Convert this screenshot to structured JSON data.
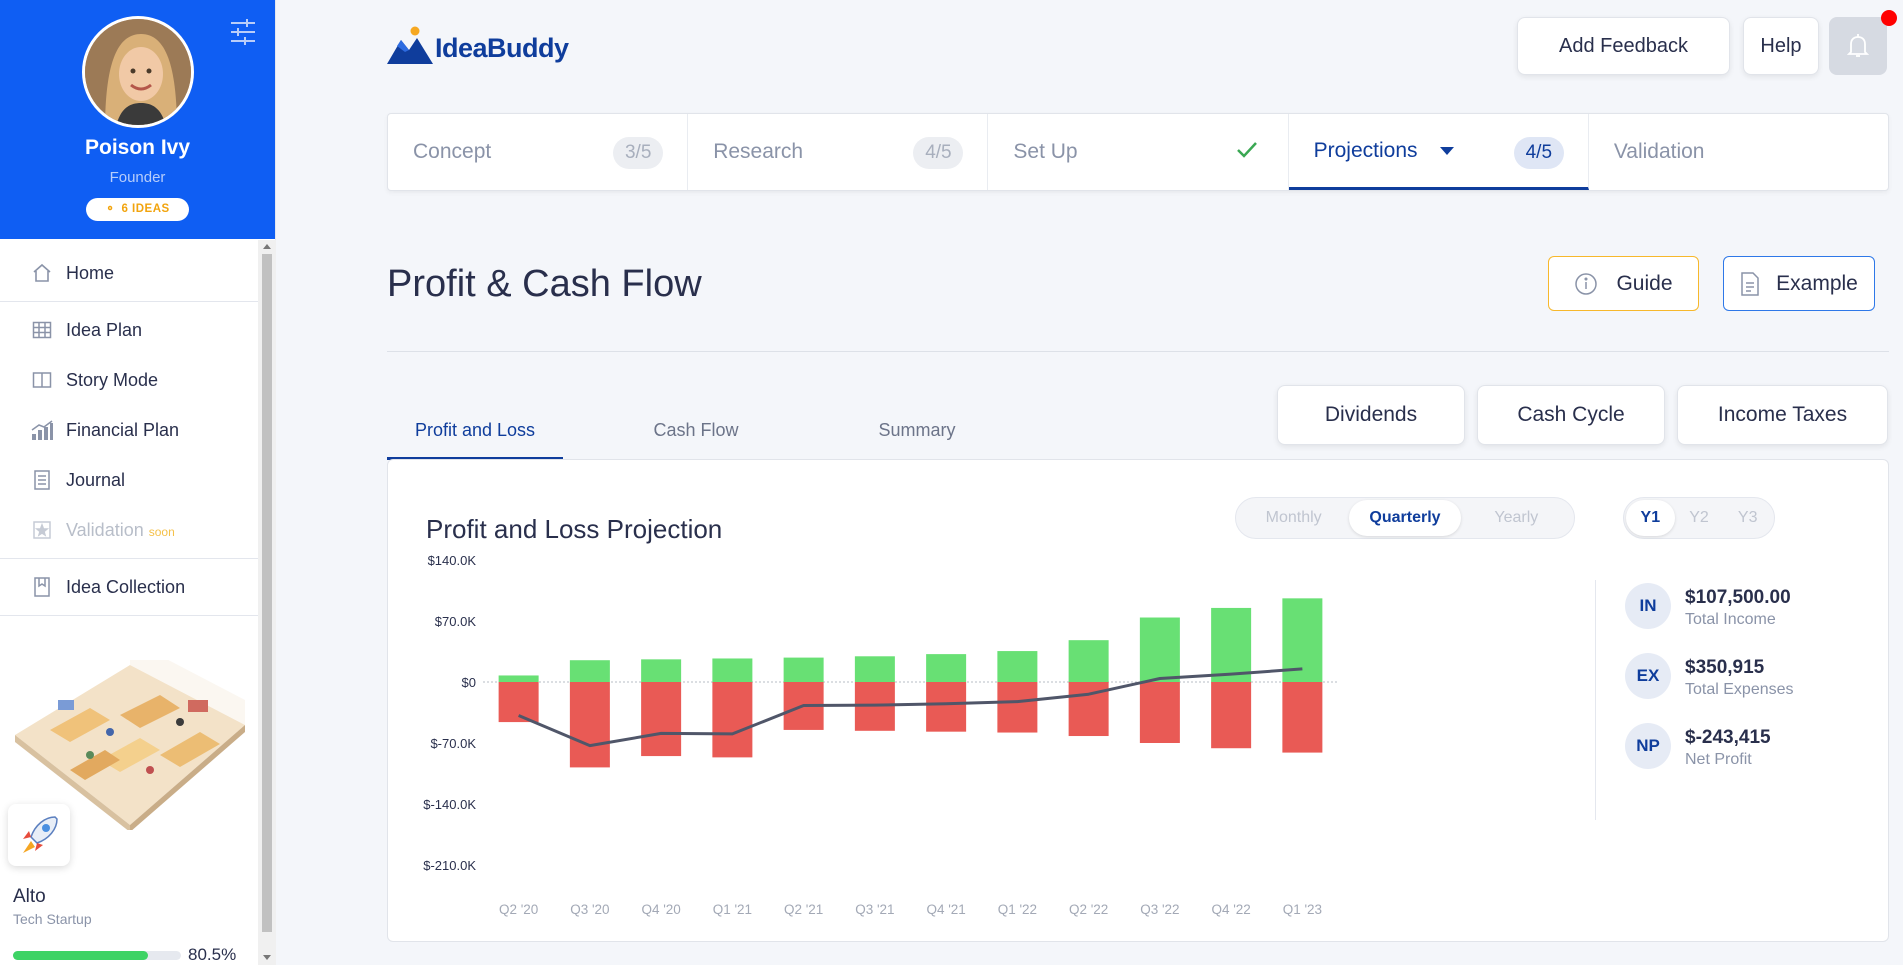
{
  "sidebar": {
    "user_name": "Poison Ivy",
    "user_role": "Founder",
    "ideas_badge": "6 IDEAS",
    "nav": [
      {
        "label": "Home",
        "icon": "home-icon"
      },
      {
        "label": "Idea Plan",
        "icon": "grid-icon"
      },
      {
        "label": "Story Mode",
        "icon": "book-icon"
      },
      {
        "label": "Financial Plan",
        "icon": "chart-icon"
      },
      {
        "label": "Journal",
        "icon": "journal-icon"
      },
      {
        "label": "Validation",
        "icon": "star-icon",
        "badge": "soon"
      },
      {
        "label": "Idea Collection",
        "icon": "bookmark-icon"
      }
    ],
    "idea": {
      "name": "Alto",
      "category": "Tech Startup",
      "progress_pct": "80.5%",
      "progress_value": 80.5
    }
  },
  "header": {
    "logo_text": "IdeaBuddy",
    "add_feedback": "Add Feedback",
    "help": "Help"
  },
  "stepper": [
    {
      "label": "Concept",
      "count": "3/5"
    },
    {
      "label": "Research",
      "count": "4/5"
    },
    {
      "label": "Set Up",
      "done": true
    },
    {
      "label": "Projections",
      "count": "4/5",
      "active": true
    },
    {
      "label": "Validation"
    }
  ],
  "page": {
    "title": "Profit & Cash Flow",
    "guide": "Guide",
    "example": "Example"
  },
  "tabs": [
    "Profit and Loss",
    "Cash Flow",
    "Summary"
  ],
  "actions": [
    "Dividends",
    "Cash Cycle",
    "Income Taxes"
  ],
  "card": {
    "title": "Profit and Loss Projection",
    "period_options": [
      "Monthly",
      "Quarterly",
      "Yearly"
    ],
    "period_selected": "Quarterly",
    "year_options": [
      "Y1",
      "Y2",
      "Y3"
    ],
    "year_selected": "Y1",
    "stats": [
      {
        "code": "IN",
        "value": "$107,500.00",
        "label": "Total Income"
      },
      {
        "code": "EX",
        "value": "$350,915",
        "label": "Total Expenses"
      },
      {
        "code": "NP",
        "value": "$-243,415",
        "label": "Net Profit"
      }
    ]
  },
  "chart_data": {
    "type": "bar",
    "title": "Profit and Loss Projection",
    "categories": [
      "Q2 '20",
      "Q3 '20",
      "Q4 '20",
      "Q1 '21",
      "Q2 '21",
      "Q3 '21",
      "Q4 '21",
      "Q1 '22",
      "Q2 '22",
      "Q3 '22",
      "Q4 '22",
      "Q1 '23"
    ],
    "y_ticks": [
      "$140.0K",
      "$70.0K",
      "$0",
      "$-70.0K",
      "$-140.0K",
      "$-210.0K"
    ],
    "ylim": [
      -210000,
      140000
    ],
    "series": [
      {
        "values": [
          7500,
          25000,
          26000,
          27000,
          28000,
          29500,
          32000,
          35500,
          48000,
          74000,
          85000,
          96000
        ],
        "color": "#68e074",
        "kind": "bar"
      },
      {
        "values": [
          -46000,
          -98000,
          -85000,
          -86500,
          -55000,
          -56000,
          -57000,
          -58000,
          -62000,
          -70000,
          -76000,
          -81000
        ],
        "color": "#e95a55",
        "kind": "bar"
      },
      {
        "values": [
          -38500,
          -73000,
          -59000,
          -59500,
          -27000,
          -26500,
          -25000,
          -22500,
          -14000,
          4000,
          9000,
          15000
        ],
        "color": "#505669",
        "kind": "line"
      }
    ]
  }
}
